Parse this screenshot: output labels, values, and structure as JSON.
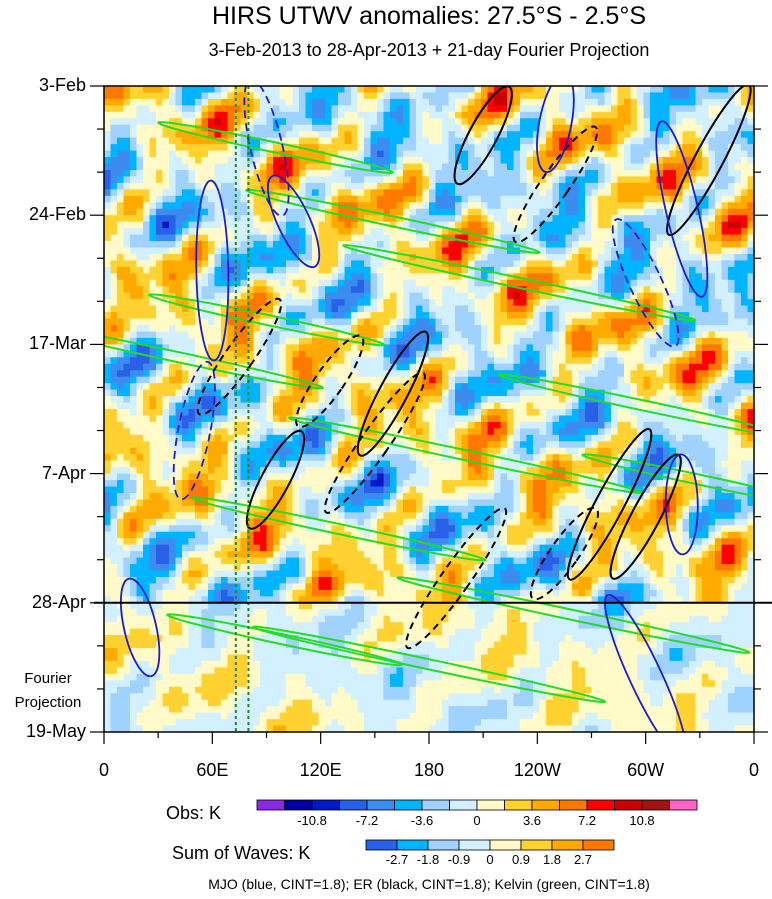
{
  "chart_data": {
    "type": "heatmap",
    "title": "HIRS UTWV anomalies: 27.5°S - 2.5°S",
    "subtitle": "3-Feb-2013 to 28-Apr-2013 + 21-day Fourier Projection",
    "y_tick_labels": [
      "3-Feb",
      "24-Feb",
      "17-Mar",
      "7-Apr",
      "28-Apr",
      "19-May"
    ],
    "x_tick_labels": [
      "0",
      "60E",
      "120E",
      "180",
      "120W",
      "60W",
      "0"
    ],
    "x_range_deg": [
      0,
      360
    ],
    "time_range_days": [
      0,
      105
    ],
    "obs_days": 84,
    "projection_label_line1": "Fourier",
    "projection_label_line2": "Projection",
    "marker_lon_deg": [
      73,
      80
    ],
    "obs_colorbar": {
      "label": "Obs: K",
      "levels": [
        "-10.8",
        "-7.2",
        "-3.6",
        "0",
        "3.6",
        "7.2",
        "10.8"
      ],
      "colors": [
        "#8a2be2",
        "#0000a0",
        "#0019c8",
        "#2860e8",
        "#3c8cf0",
        "#00b4ff",
        "#a0d2ff",
        "#d2f0ff",
        "#fffac8",
        "#ffd232",
        "#ffaa00",
        "#ff7800",
        "#ff0000",
        "#c80000",
        "#a01414",
        "#ff64c8"
      ]
    },
    "sum_colorbar": {
      "label": "Sum of Waves: K",
      "levels": [
        "-2.7",
        "-1.8",
        "-0.9",
        "0",
        "0.9",
        "1.8",
        "2.7"
      ],
      "colors": [
        "#2860e8",
        "#00b4ff",
        "#a0d2ff",
        "#d2f0ff",
        "#fffac8",
        "#ffd232",
        "#ffaa00",
        "#ff7800"
      ]
    },
    "footnote": "MJO (blue, CINT=1.8); ER (black, CINT=1.8); Kelvin (green, CINT=1.8)",
    "series_colors": {
      "mjo": "#1c1ccc",
      "er": "#000000",
      "kelvin": "#22dd22"
    }
  }
}
